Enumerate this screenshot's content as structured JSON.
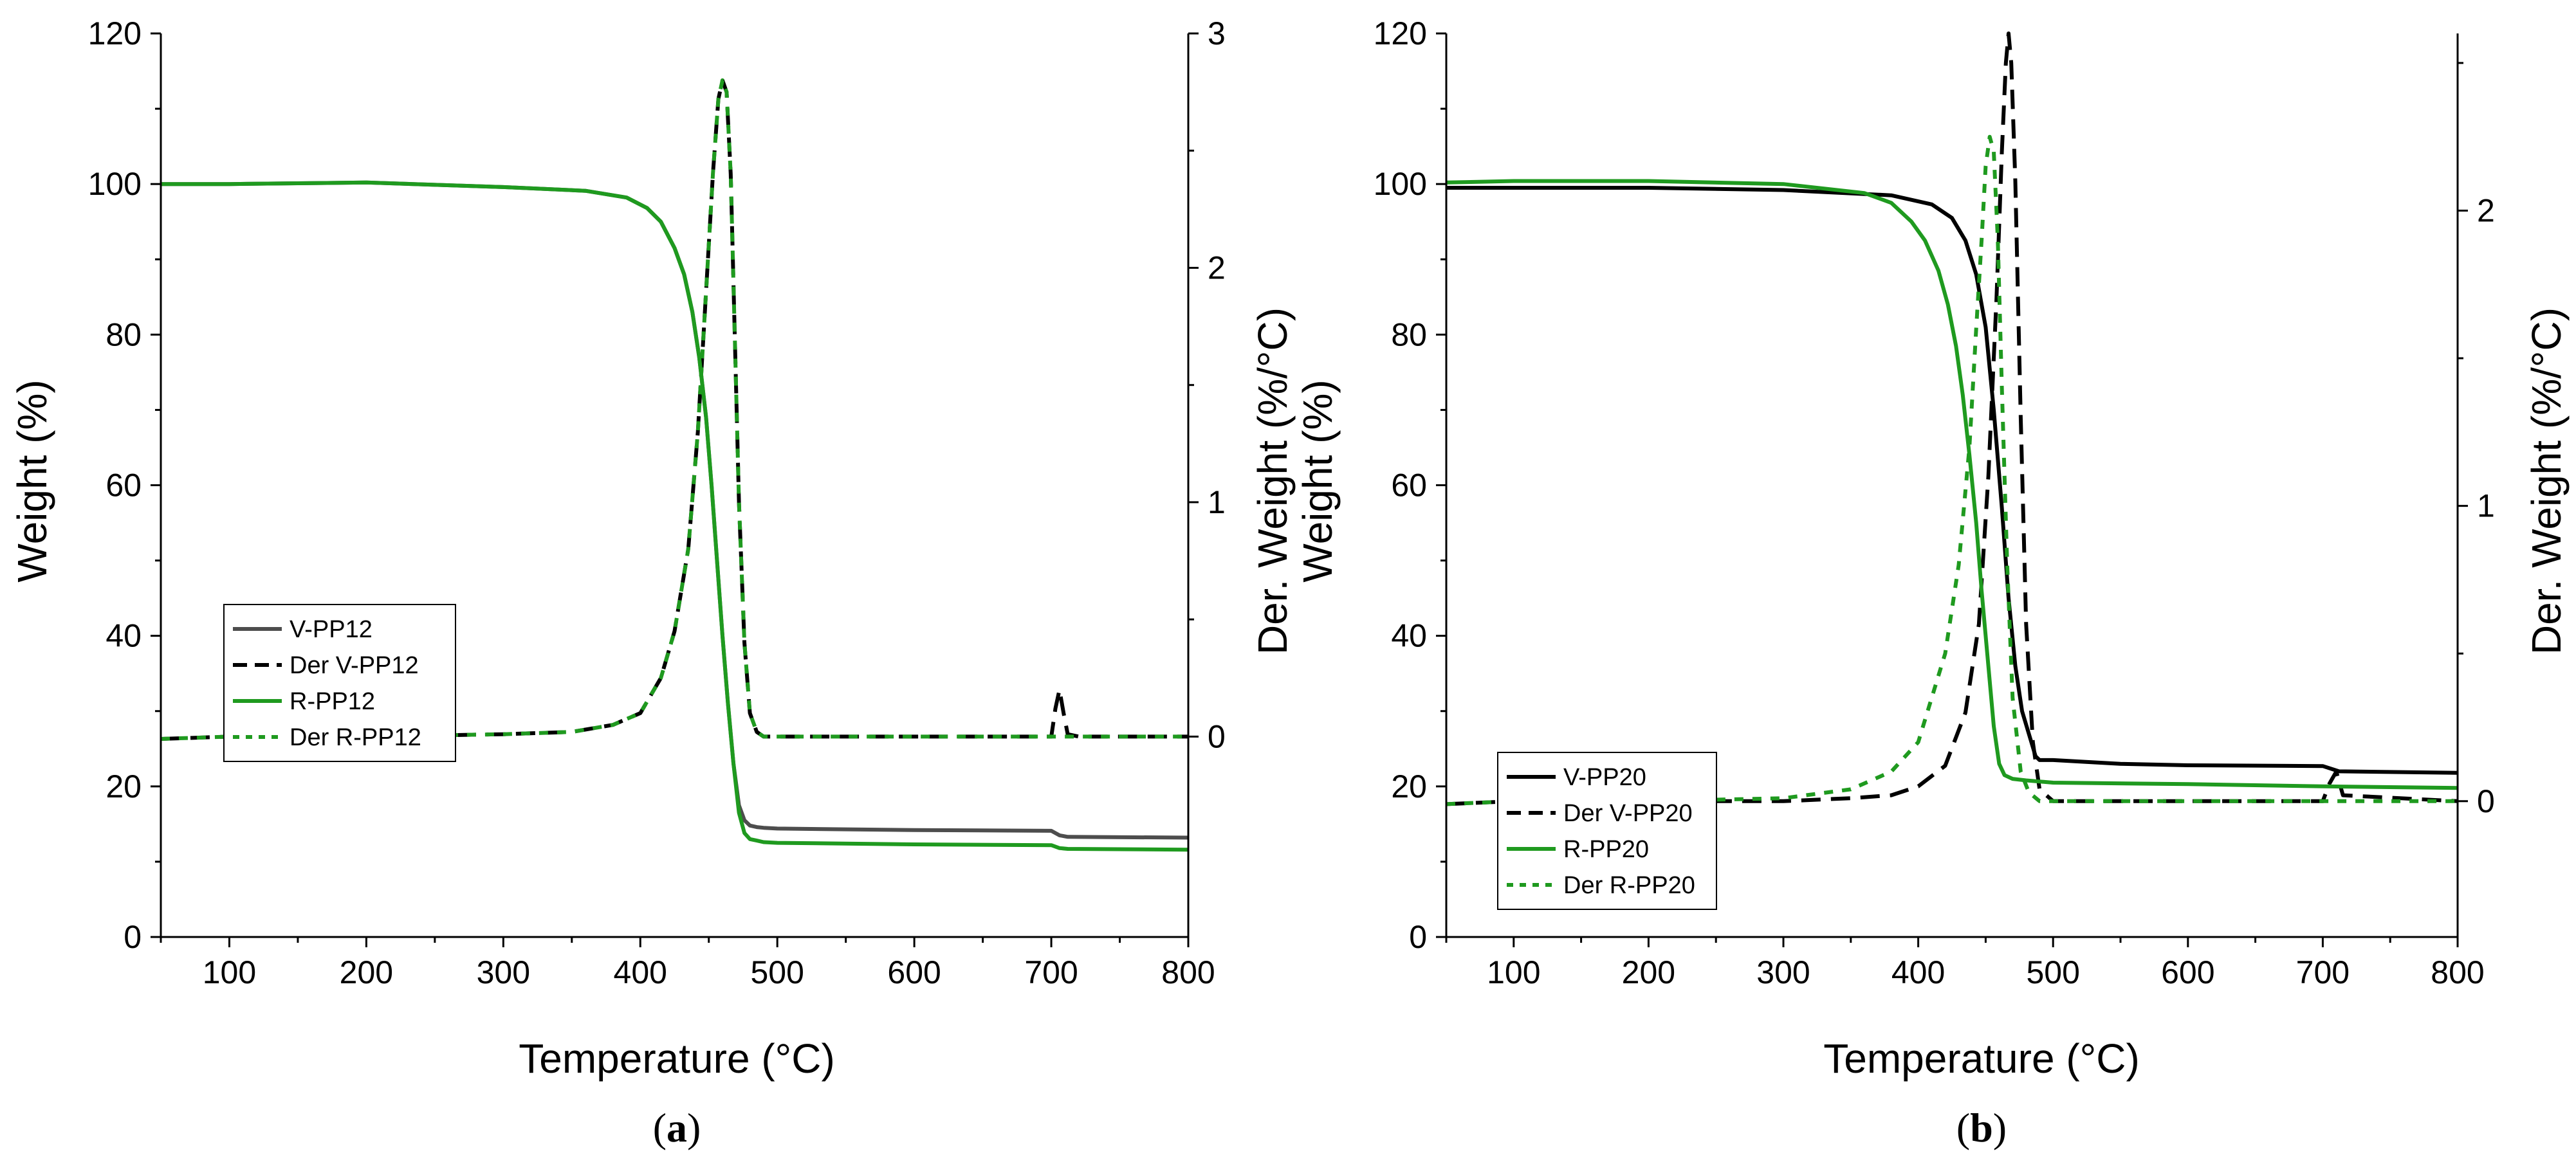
{
  "figure": {
    "panels": [
      {
        "panel_label": "(a)",
        "panel_label_letter": "a"
      },
      {
        "panel_label": "(b)",
        "panel_label_letter": "b"
      }
    ]
  },
  "colors": {
    "black": "#000000",
    "gray": "#4d4d4d",
    "green": "#1f9a1f",
    "axis": "#000000"
  },
  "chart_data": [
    {
      "type": "line",
      "panel": "a",
      "xlabel": "Temperature (°C)",
      "ylabel_left": "Weight (%)",
      "ylabel_right": "Der. Weight (%/°C)",
      "xlim": [
        50,
        800
      ],
      "ylim_left": [
        0,
        120
      ],
      "ylim_right": [
        -0.855,
        3
      ],
      "x_ticks": [
        100,
        200,
        300,
        400,
        500,
        600,
        700,
        800
      ],
      "y_left_ticks": [
        0,
        20,
        40,
        60,
        80,
        100,
        120
      ],
      "y_right_ticks": [
        0,
        1,
        2,
        3
      ],
      "legend_position": "middle-left",
      "series": [
        {
          "name": "V-PP12",
          "axis": "left",
          "color": "gray",
          "dash": "solid",
          "x": [
            50,
            100,
            200,
            300,
            360,
            390,
            405,
            415,
            425,
            432,
            438,
            443,
            448,
            452,
            456,
            460,
            464,
            468,
            472,
            476,
            480,
            485,
            490,
            500,
            600,
            700,
            706,
            712,
            800
          ],
          "y": [
            100,
            100,
            100.2,
            99.6,
            99.1,
            98.2,
            96.8,
            95,
            91.5,
            88,
            83,
            77,
            69,
            60,
            50,
            40,
            31,
            23,
            17.5,
            15.5,
            14.8,
            14.6,
            14.5,
            14.4,
            14.2,
            14.1,
            13.5,
            13.3,
            13.2
          ]
        },
        {
          "name": "Der V-PP12",
          "axis": "right",
          "color": "black",
          "dash": "dashed",
          "x": [
            50,
            100,
            200,
            300,
            350,
            380,
            400,
            415,
            425,
            435,
            442,
            448,
            453,
            457,
            460,
            463,
            466,
            469,
            472,
            476,
            480,
            485,
            490,
            500,
            600,
            700,
            703,
            706,
            709,
            712,
            720,
            800
          ],
          "y": [
            -0.01,
            0,
            0,
            0.01,
            0.02,
            0.05,
            0.1,
            0.25,
            0.45,
            0.8,
            1.3,
            1.9,
            2.4,
            2.72,
            2.8,
            2.75,
            2.4,
            1.7,
            1.0,
            0.4,
            0.1,
            0.02,
            0,
            0,
            0,
            0,
            0.12,
            0.2,
            0.1,
            0.01,
            0,
            0
          ]
        },
        {
          "name": "R-PP12",
          "axis": "left",
          "color": "green",
          "dash": "solid",
          "x": [
            50,
            100,
            200,
            300,
            360,
            390,
            405,
            415,
            425,
            432,
            438,
            443,
            448,
            452,
            456,
            460,
            464,
            468,
            472,
            476,
            480,
            485,
            490,
            500,
            600,
            700,
            706,
            712,
            800
          ],
          "y": [
            100,
            100,
            100.2,
            99.6,
            99.1,
            98.2,
            96.8,
            95,
            91.5,
            88,
            83,
            77,
            69,
            60,
            50,
            40,
            31,
            23,
            16.5,
            13.8,
            13,
            12.8,
            12.6,
            12.5,
            12.3,
            12.2,
            11.8,
            11.7,
            11.6
          ]
        },
        {
          "name": "Der R-PP12",
          "axis": "right",
          "color": "green",
          "dash": "dotted",
          "x": [
            50,
            100,
            200,
            300,
            350,
            380,
            400,
            415,
            425,
            435,
            442,
            448,
            453,
            457,
            460,
            463,
            466,
            469,
            472,
            476,
            480,
            485,
            490,
            500,
            600,
            700,
            800
          ],
          "y": [
            -0.01,
            0,
            0,
            0.01,
            0.02,
            0.05,
            0.1,
            0.25,
            0.45,
            0.8,
            1.3,
            1.9,
            2.4,
            2.72,
            2.8,
            2.75,
            2.4,
            1.7,
            1.0,
            0.4,
            0.1,
            0.02,
            0,
            0,
            0,
            0,
            0
          ]
        }
      ]
    },
    {
      "type": "line",
      "panel": "b",
      "xlabel": "Temperature (°C)",
      "ylabel_left": "Weight (%)",
      "ylabel_right": "Der. Weight (%/°C)",
      "xlim": [
        50,
        800
      ],
      "ylim_left": [
        0,
        120
      ],
      "ylim_right": [
        -0.46,
        2.6
      ],
      "x_ticks": [
        100,
        200,
        300,
        400,
        500,
        600,
        700,
        800
      ],
      "y_left_ticks": [
        0,
        20,
        40,
        60,
        80,
        100,
        120
      ],
      "y_right_ticks": [
        0,
        1,
        2
      ],
      "legend_position": "middle-left",
      "series": [
        {
          "name": "V-PP20",
          "axis": "left",
          "color": "black",
          "dash": "solid",
          "x": [
            50,
            100,
            200,
            300,
            380,
            410,
            425,
            435,
            443,
            450,
            456,
            462,
            467,
            472,
            477,
            482,
            487,
            490,
            500,
            550,
            600,
            700,
            712,
            800
          ],
          "y": [
            99.5,
            99.5,
            99.5,
            99.2,
            98.5,
            97.3,
            95.5,
            92.5,
            88,
            81,
            70,
            57,
            45,
            36,
            30,
            27,
            24,
            23.5,
            23.5,
            23,
            22.8,
            22.7,
            22,
            21.8
          ]
        },
        {
          "name": "Der V-PP20",
          "axis": "right",
          "color": "black",
          "dash": "dashed",
          "x": [
            50,
            100,
            200,
            300,
            350,
            380,
            400,
            420,
            435,
            445,
            452,
            458,
            462,
            465,
            467,
            469,
            472,
            476,
            480,
            485,
            490,
            500,
            600,
            700,
            705,
            710,
            715,
            800
          ],
          "y": [
            -0.01,
            0,
            0,
            0,
            0.01,
            0.02,
            0.05,
            0.12,
            0.3,
            0.6,
            1.1,
            1.7,
            2.2,
            2.5,
            2.6,
            2.5,
            2.1,
            1.3,
            0.6,
            0.2,
            0.04,
            0,
            0,
            0,
            0.06,
            0.1,
            0.02,
            0
          ]
        },
        {
          "name": "R-PP20",
          "axis": "left",
          "color": "green",
          "dash": "solid",
          "x": [
            50,
            100,
            200,
            300,
            360,
            380,
            395,
            405,
            415,
            422,
            428,
            433,
            438,
            443,
            447,
            452,
            456,
            460,
            464,
            470,
            480,
            500,
            600,
            700,
            800
          ],
          "y": [
            100.2,
            100.4,
            100.4,
            100,
            98.8,
            97.5,
            95,
            92.5,
            88.5,
            84,
            78.5,
            72,
            64,
            55,
            46,
            36,
            28,
            23,
            21.5,
            21,
            20.8,
            20.5,
            20.3,
            20,
            19.8
          ]
        },
        {
          "name": "Der R-PP20",
          "axis": "right",
          "color": "green",
          "dash": "dotted",
          "x": [
            50,
            100,
            200,
            300,
            350,
            380,
            400,
            420,
            430,
            438,
            443,
            447,
            450,
            453,
            456,
            459,
            462,
            466,
            470,
            476,
            482,
            490,
            500,
            600,
            700,
            800
          ],
          "y": [
            -0.01,
            0,
            0,
            0.01,
            0.04,
            0.1,
            0.2,
            0.5,
            0.8,
            1.2,
            1.6,
            1.9,
            2.15,
            2.25,
            2.2,
            1.9,
            1.4,
            0.8,
            0.35,
            0.1,
            0.03,
            0,
            0,
            0,
            0,
            0
          ]
        }
      ]
    }
  ]
}
